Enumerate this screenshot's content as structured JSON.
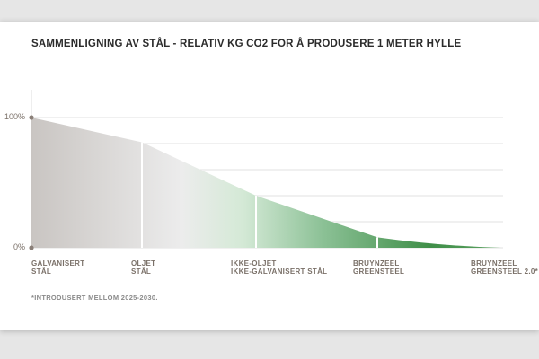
{
  "chart_data": {
    "type": "area",
    "title": "SAMMENLIGNING AV STÅL - RELATIV KG CO2 FOR Å PRODUSERE 1 METER HYLLE",
    "categories": [
      [
        "GALVANISERT",
        "STÅL"
      ],
      [
        "OLJET",
        "STÅL"
      ],
      [
        "IKKE-OLJET",
        "IKKE-GALVANISERT STÅL"
      ],
      [
        "BRUYNZEEL",
        "GREENSTEEL"
      ],
      [
        "BRUYNZEEL",
        "GREENSTEEL 2.0*"
      ]
    ],
    "values": [
      100,
      81,
      40,
      8,
      0
    ],
    "y_tick_labels": [
      "100%",
      "0%"
    ],
    "ylim": [
      0,
      100
    ],
    "grid": true,
    "colors": {
      "grey": "#c9c5c2",
      "light": "#ececec",
      "green_mid": "#8cc196",
      "green_dark": "#3f8e48",
      "divider": "#ffffff",
      "axis_dot": "#8a7f78"
    },
    "footnote": "*INTRODUSERT MELLOM 2025-2030."
  }
}
